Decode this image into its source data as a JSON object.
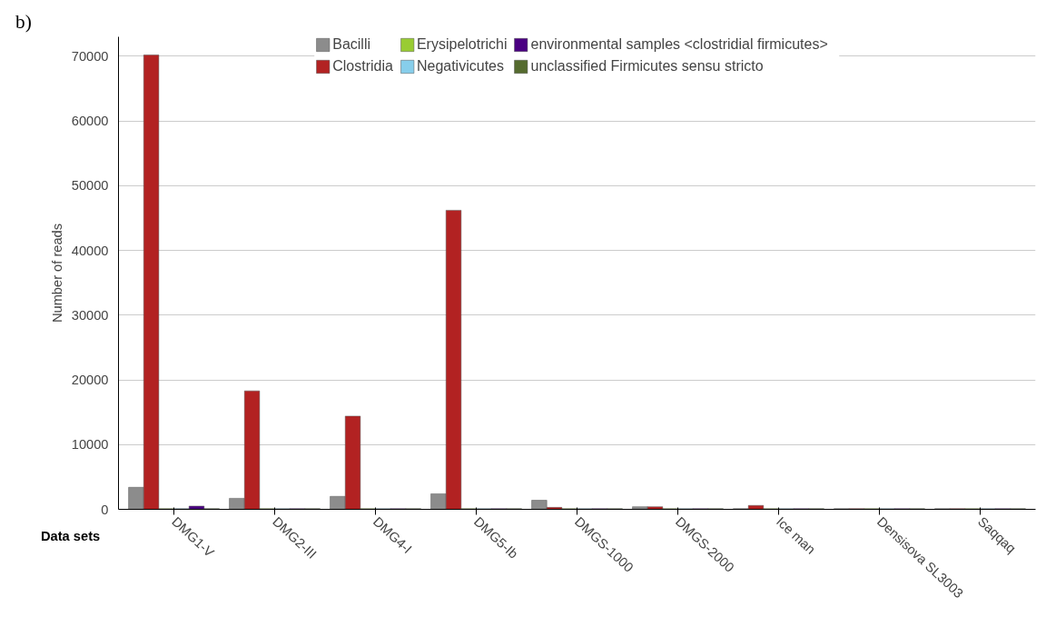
{
  "chart_data": {
    "type": "bar",
    "ylabel": "Number of reads",
    "xlabel": "Data sets",
    "annotations": [
      "b)"
    ],
    "categories": [
      "DMG1-V",
      "DMG2-III",
      "DMG4-I",
      "DMG5-Ib",
      "DMGS-1000",
      "DMGS-2000",
      "Ice man",
      "Densisova SL3003",
      "Saqqaq"
    ],
    "series": [
      {
        "name": "Bacilli",
        "color": "#8c8c8c",
        "values": [
          3400,
          1700,
          2000,
          2400,
          1400,
          400,
          100,
          100,
          100
        ]
      },
      {
        "name": "Clostridia",
        "color": "#b22222",
        "values": [
          70200,
          18300,
          14400,
          46200,
          300,
          400,
          600,
          100,
          100
        ]
      },
      {
        "name": "Erysipelotrichi",
        "color": "#99cc33",
        "values": [
          100,
          100,
          100,
          100,
          100,
          100,
          100,
          100,
          100
        ]
      },
      {
        "name": "Negativicutes",
        "color": "#87ceeb",
        "values": [
          100,
          100,
          100,
          100,
          100,
          100,
          100,
          100,
          100
        ]
      },
      {
        "name": "environmental samples <clostridial firmicutes>",
        "color": "#4b0082",
        "values": [
          500,
          100,
          100,
          100,
          100,
          100,
          100,
          100,
          100
        ]
      },
      {
        "name": "unclassified Firmicutes sensu stricto",
        "color": "#556b2f",
        "values": [
          100,
          100,
          100,
          100,
          100,
          100,
          100,
          100,
          100
        ]
      }
    ],
    "ylim": [
      0,
      73000
    ],
    "yticks": [
      0,
      10000,
      20000,
      30000,
      40000,
      50000,
      60000,
      70000
    ],
    "grid": "y",
    "legend": "top"
  }
}
